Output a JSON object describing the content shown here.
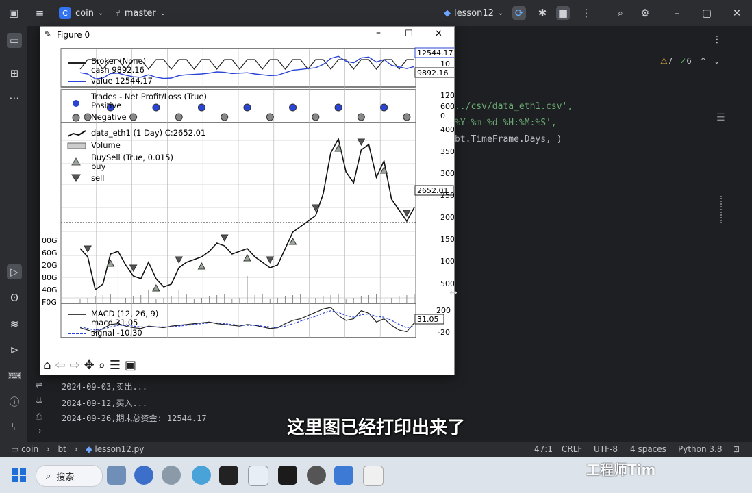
{
  "titlebar": {
    "project": "coin",
    "project_badge": "C",
    "branch": "master",
    "run_config": "lesson12"
  },
  "editor": {
    "inspections_warnings": "7",
    "inspections_ok": "6",
    "code_lines": [
      "../csv/data_eth1.csv',",
      "%Y-%m-%d %H:%M:%S',",
      "bt.TimeFrame.Days, )"
    ]
  },
  "console": {
    "lines": [
      "2024-09-03,卖出...",
      "2024-09-12,买入...",
      "2024-09-26,期末总资金: 12544.17"
    ]
  },
  "statusbar": {
    "breadcrumb": [
      "coin",
      "bt",
      "lesson12.py"
    ],
    "position": "47:1",
    "line_ending": "CRLF",
    "encoding": "UTF-8",
    "indent": "4 spaces",
    "interpreter": "Python 3.8"
  },
  "taskbar": {
    "search_label": "搜索"
  },
  "figure": {
    "window_title": "Figure 0",
    "broker_legend": {
      "title": "Broker (None)",
      "cash": "cash 9892.16",
      "value": "value 12544.17",
      "value_tag": "12544.17",
      "cash_tag": "9892.16",
      "yticks": [
        "10"
      ]
    },
    "trades_legend": {
      "title": "Trades - Net Profit/Loss (True)",
      "positive": "Positive",
      "negative": "Negative",
      "yticks": [
        "120",
        "600",
        "0"
      ]
    },
    "price_legend": {
      "data": "data_eth1 (1 Day) C:2652.01",
      "volume": "Volume",
      "buysell": "BuySell (True, 0.015)",
      "buy": "buy",
      "sell": "sell",
      "price_tag": "2652.01",
      "yticks": [
        "400",
        "350",
        "300",
        "250",
        "200",
        "150",
        "100",
        "500"
      ],
      "volume_ticks": [
        "00G",
        "60G",
        "20G",
        "80G",
        "40G",
        "F0G"
      ]
    },
    "macd_legend": {
      "title": "MACD (12, 26, 9)",
      "macd": "macd 31.05",
      "signal": "signal -10.30",
      "macd_tag": "31.05",
      "yticks": [
        "200",
        "-20"
      ]
    }
  },
  "chart_data": {
    "type": "line",
    "series": [
      {
        "name": "data_eth1 (1 Day) C:2652.01",
        "values": [
          1900,
          1750,
          1150,
          1250,
          1800,
          1850,
          1600,
          1400,
          1350,
          1650,
          1350,
          1200,
          1250,
          1550,
          1650,
          1700,
          1750,
          1850,
          2000,
          1950,
          1800,
          1850,
          1900,
          1750,
          1650,
          1550,
          1600,
          1900,
          2200,
          2300,
          2400,
          2500,
          2900,
          3650,
          3900,
          3300,
          3100,
          3700,
          3800,
          3200,
          3500,
          2800,
          2600,
          2400,
          2652
        ]
      },
      {
        "name": "macd 31.05",
        "values": [
          -30,
          -60,
          -90,
          -40,
          10,
          20,
          -10,
          -30,
          -40,
          -10,
          -20,
          -30,
          -10,
          0,
          10,
          20,
          30,
          40,
          20,
          10,
          0,
          -10,
          10,
          0,
          -20,
          -40,
          -30,
          20,
          60,
          80,
          120,
          160,
          200,
          220,
          120,
          60,
          80,
          180,
          150,
          40,
          80,
          0,
          -60,
          -80,
          31
        ]
      },
      {
        "name": "signal -10.30",
        "values": [
          -20,
          -40,
          -60,
          -50,
          -20,
          0,
          0,
          -10,
          -20,
          -20,
          -20,
          -20,
          -20,
          -10,
          0,
          10,
          20,
          30,
          30,
          20,
          10,
          0,
          0,
          0,
          -10,
          -20,
          -30,
          -10,
          20,
          50,
          80,
          110,
          150,
          180,
          160,
          120,
          100,
          130,
          140,
          110,
          100,
          60,
          10,
          -30,
          -10
        ]
      }
    ],
    "ylim": [
      0,
      4000
    ]
  }
}
